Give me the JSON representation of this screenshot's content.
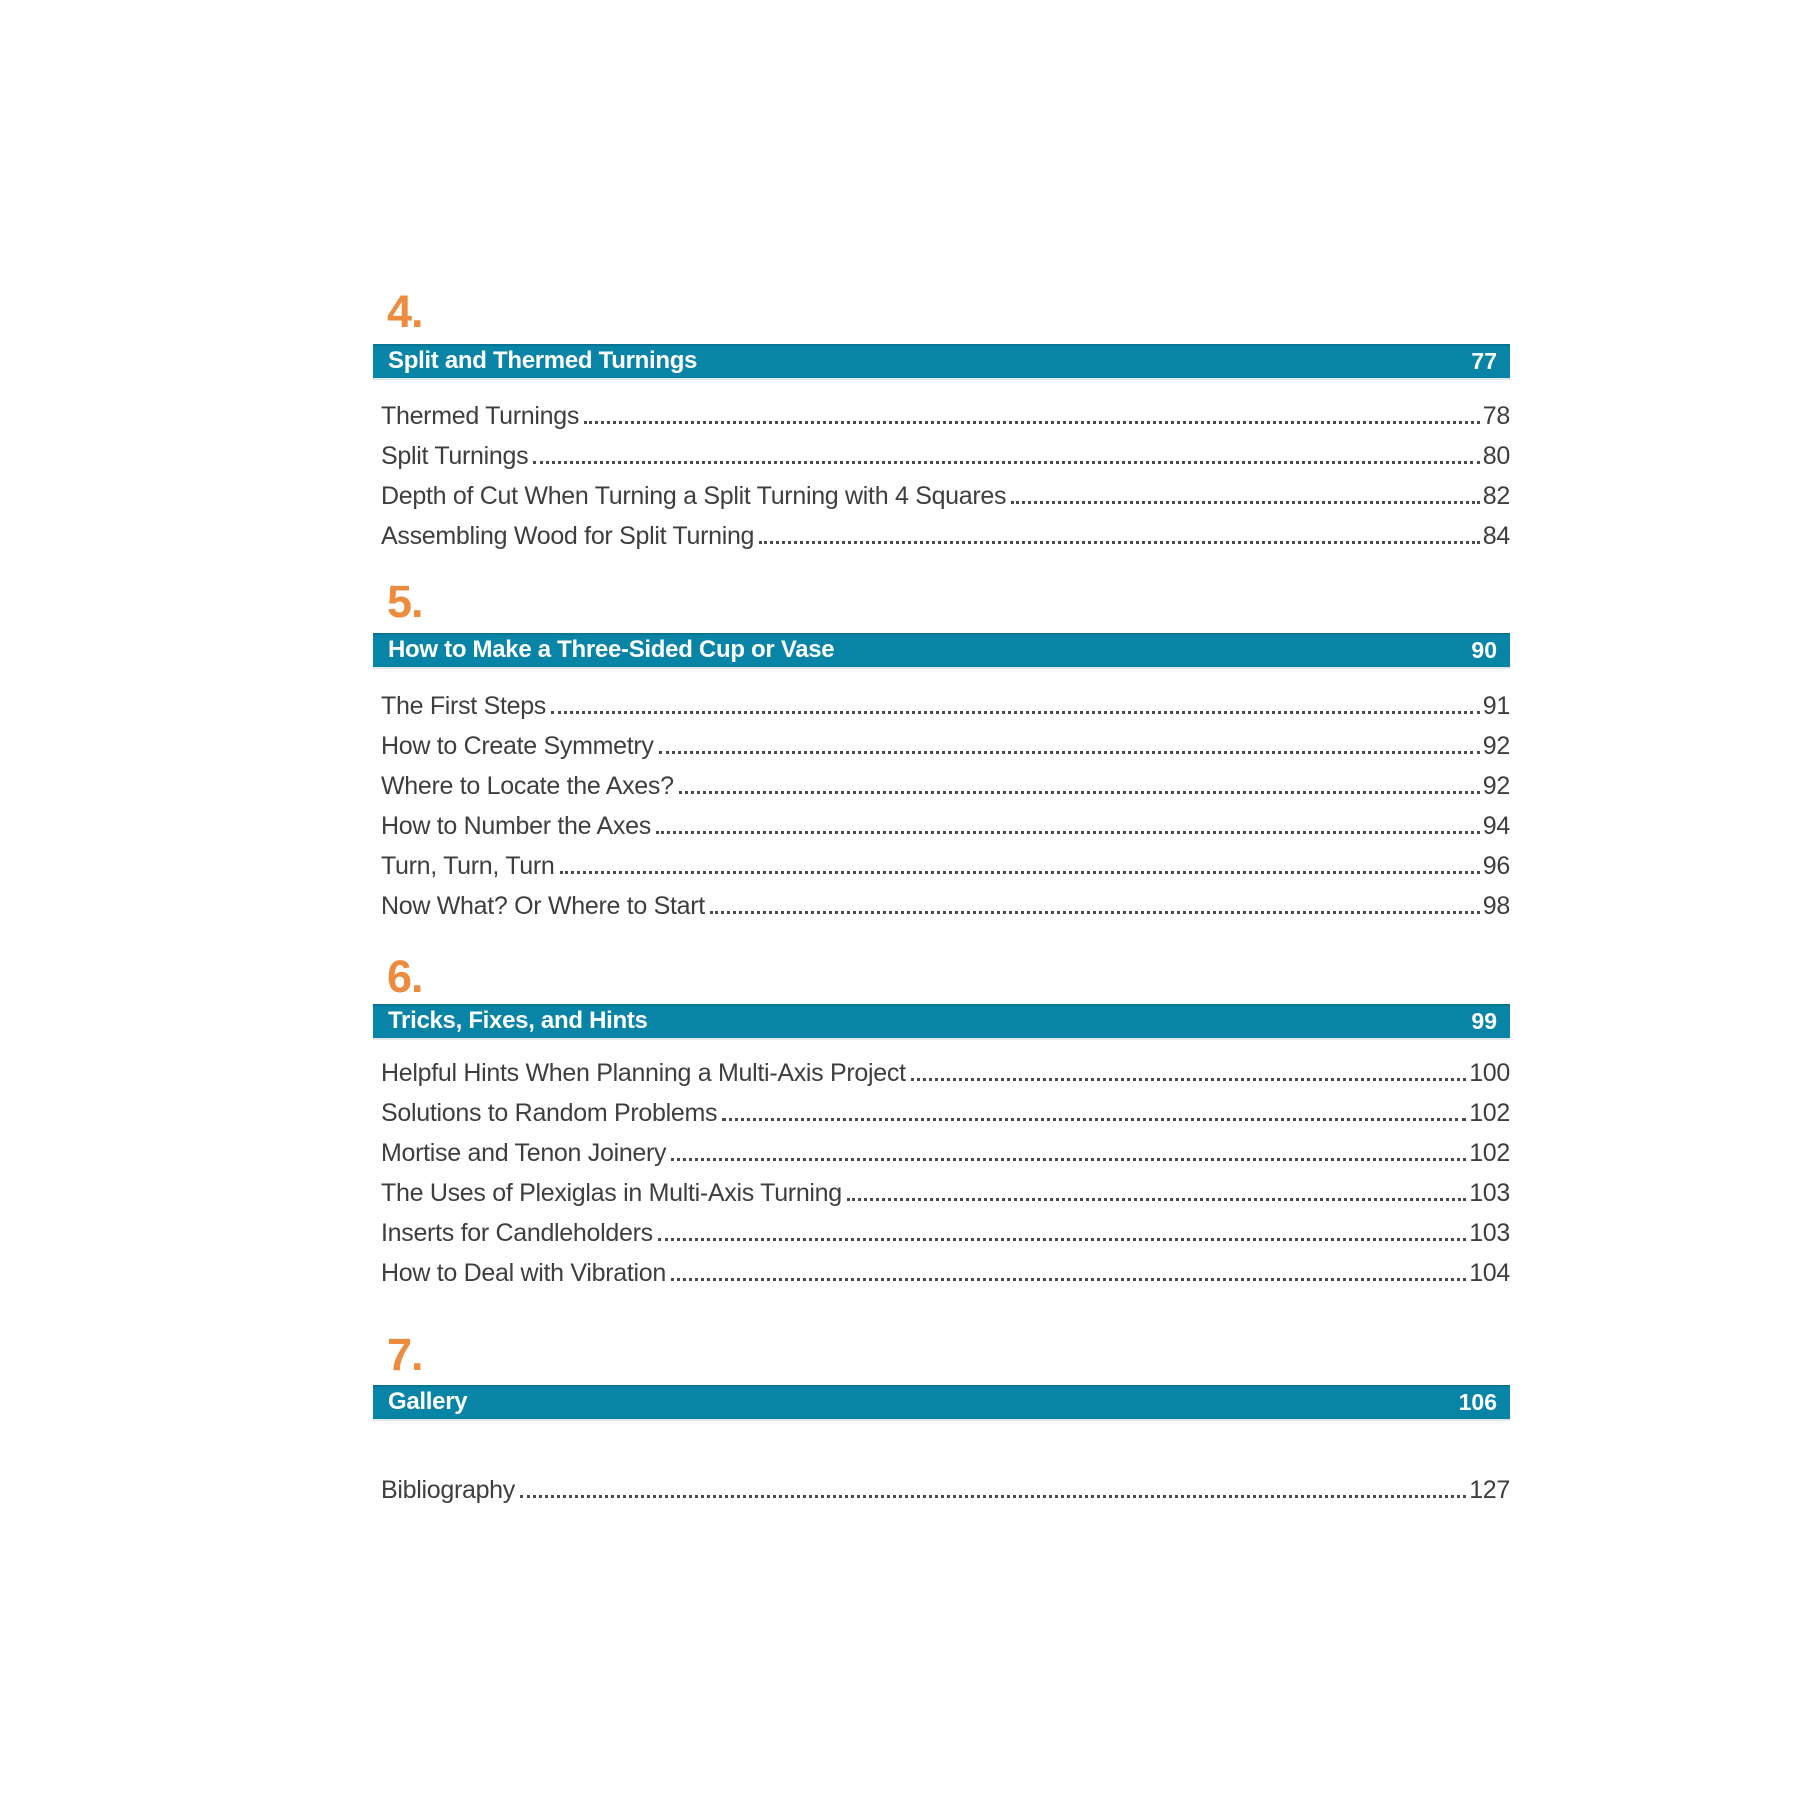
{
  "colors": {
    "accent_orange": "#ED8C3E",
    "bar_teal": "#0884A6",
    "bar_text": "#FFFFFF",
    "entry_text": "#3E3E3E"
  },
  "toc": {
    "sections": [
      {
        "number": "4.",
        "title": "Split and Thermed Turnings",
        "page": "77",
        "entries": [
          {
            "label": "Thermed Turnings",
            "page": "78"
          },
          {
            "label": "Split Turnings",
            "page": "80"
          },
          {
            "label": "Depth of Cut When Turning a Split Turning with 4 Squares",
            "page": "82"
          },
          {
            "label": "Assembling Wood for Split Turning",
            "page": "84"
          }
        ]
      },
      {
        "number": "5.",
        "title": "How to Make a Three-Sided Cup or Vase",
        "page": "90",
        "entries": [
          {
            "label": "The First Steps",
            "page": "91"
          },
          {
            "label": "How to Create Symmetry",
            "page": "92"
          },
          {
            "label": "Where to Locate the Axes?",
            "page": "92"
          },
          {
            "label": "How to Number the Axes",
            "page": "94"
          },
          {
            "label": "Turn, Turn, Turn",
            "page": "96"
          },
          {
            "label": "Now What? Or Where to Start",
            "page": "98"
          }
        ]
      },
      {
        "number": "6.",
        "title": "Tricks, Fixes, and Hints",
        "page": "99",
        "entries": [
          {
            "label": "Helpful Hints When Planning a Multi-Axis Project",
            "page": "100"
          },
          {
            "label": "Solutions to Random Problems",
            "page": "102"
          },
          {
            "label": "Mortise and Tenon Joinery",
            "page": "102"
          },
          {
            "label": "The Uses of Plexiglas in Multi-Axis Turning",
            "page": "103"
          },
          {
            "label": "Inserts for Candleholders",
            "page": "103"
          },
          {
            "label": "How to Deal with Vibration",
            "page": "104"
          }
        ]
      },
      {
        "number": "7.",
        "title": "Gallery",
        "page": "106",
        "entries": []
      }
    ],
    "backmatter": [
      {
        "label": "Bibliography",
        "page": "127"
      }
    ]
  }
}
